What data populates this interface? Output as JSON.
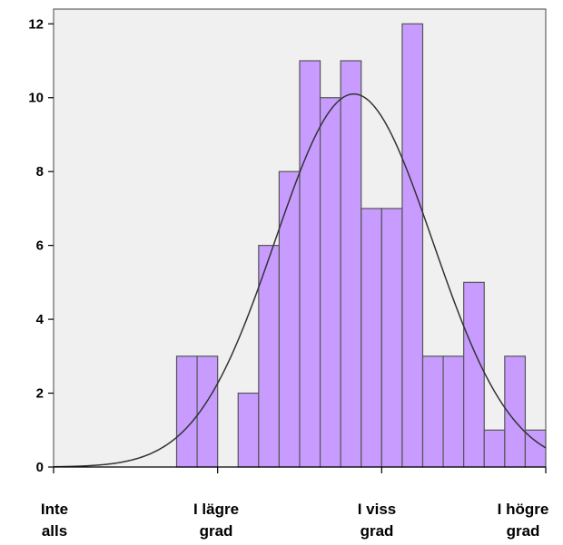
{
  "chart_data": {
    "type": "bar",
    "subtype": "histogram-with-normal-curve",
    "title": "",
    "xlabel": "",
    "ylabel": "",
    "ylim": [
      0,
      12.4
    ],
    "yticks": [
      "0",
      "2",
      "4",
      "6",
      "8",
      "10",
      "12"
    ],
    "x_range": [
      1,
      4
    ],
    "bins": [
      {
        "start": 1.0,
        "end": 1.125,
        "value": 0
      },
      {
        "start": 1.125,
        "end": 1.25,
        "value": 0
      },
      {
        "start": 1.25,
        "end": 1.375,
        "value": 0
      },
      {
        "start": 1.375,
        "end": 1.5,
        "value": 0
      },
      {
        "start": 1.5,
        "end": 1.625,
        "value": 0
      },
      {
        "start": 1.625,
        "end": 1.75,
        "value": 0
      },
      {
        "start": 1.75,
        "end": 1.875,
        "value": 3
      },
      {
        "start": 1.875,
        "end": 2.0,
        "value": 3
      },
      {
        "start": 2.0,
        "end": 2.125,
        "value": 0
      },
      {
        "start": 2.125,
        "end": 2.25,
        "value": 2
      },
      {
        "start": 2.25,
        "end": 2.375,
        "value": 6
      },
      {
        "start": 2.375,
        "end": 2.5,
        "value": 8
      },
      {
        "start": 2.5,
        "end": 2.625,
        "value": 11
      },
      {
        "start": 2.625,
        "end": 2.75,
        "value": 10
      },
      {
        "start": 2.75,
        "end": 2.875,
        "value": 11
      },
      {
        "start": 2.875,
        "end": 3.0,
        "value": 7
      },
      {
        "start": 3.0,
        "end": 3.125,
        "value": 7
      },
      {
        "start": 3.125,
        "end": 3.25,
        "value": 12
      },
      {
        "start": 3.25,
        "end": 3.375,
        "value": 3
      },
      {
        "start": 3.375,
        "end": 3.5,
        "value": 3
      },
      {
        "start": 3.5,
        "end": 3.625,
        "value": 5
      },
      {
        "start": 3.625,
        "end": 3.75,
        "value": 1
      },
      {
        "start": 3.75,
        "end": 3.875,
        "value": 3
      },
      {
        "start": 3.875,
        "end": 4.0,
        "value": 1
      }
    ],
    "normal_curve": {
      "mean": 2.83,
      "sd": 0.48,
      "peak": 10.1
    },
    "x_categories": [
      {
        "value": 1,
        "label": [
          "Inte",
          "alls"
        ]
      },
      {
        "value": 2,
        "label": [
          "I lägre",
          "grad"
        ]
      },
      {
        "value": 3,
        "label": [
          "I viss",
          "grad"
        ]
      },
      {
        "value": 4,
        "label": [
          "I högre",
          "grad"
        ]
      }
    ],
    "grid": false,
    "colors": {
      "bar_fill": "#c89cff",
      "bar_stroke": "#555555",
      "plot_bg": "#f0f0f0",
      "curve": "#333333",
      "axis": "#000000"
    }
  }
}
